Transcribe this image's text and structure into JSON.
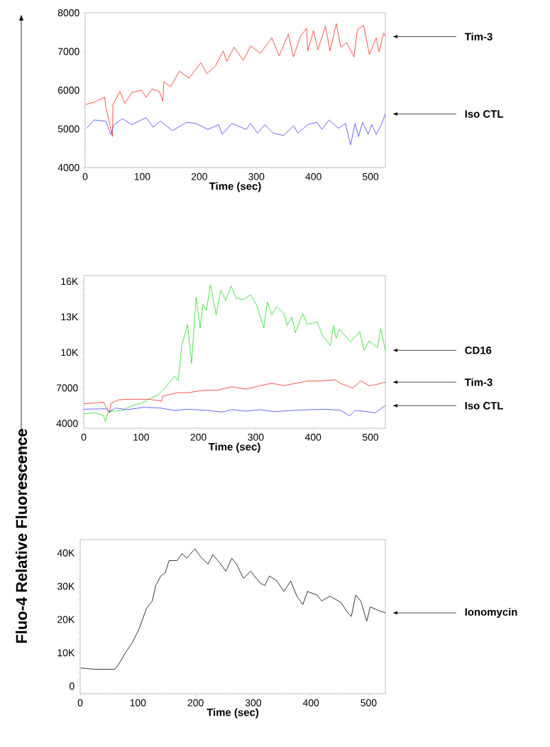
{
  "chart_data": [
    {
      "type": "line",
      "xlabel": "Time (sec)",
      "xlim": [
        0,
        526
      ],
      "xticks": [
        0,
        100,
        200,
        300,
        400,
        500
      ],
      "ylim": [
        4000,
        8000
      ],
      "yticks": [
        4000,
        5000,
        6000,
        7000,
        8000
      ],
      "series": [
        {
          "name": "Tim-3",
          "color": "#ff2a1a",
          "x": [
            0.8,
            15.4,
            34.1,
            36.2,
            47.8,
            48.7,
            61,
            69.5,
            82,
            98.6,
            107,
            117,
            130,
            136,
            138,
            150,
            165,
            182,
            203,
            213,
            228,
            242,
            248,
            261,
            277,
            290,
            307,
            327,
            340,
            356,
            365,
            377,
            388,
            390,
            400,
            408,
            421,
            429,
            440,
            448,
            458,
            471,
            477,
            488,
            498,
            510,
            515,
            523,
            526
          ],
          "values": [
            5630,
            5690,
            5815,
            5570,
            4800,
            5630,
            5970,
            5660,
            5940,
            6000,
            5815,
            6030,
            5970,
            5720,
            6215,
            6090,
            6490,
            6310,
            6710,
            6430,
            6615,
            7015,
            6740,
            7110,
            6770,
            7140,
            6955,
            7350,
            6890,
            7445,
            6860,
            7385,
            7600,
            7015,
            7540,
            7045,
            7660,
            7015,
            7720,
            7110,
            7230,
            6860,
            7570,
            7675,
            6920,
            7350,
            6985,
            7475,
            7385
          ]
        },
        {
          "name": "Iso CTL",
          "color": "#4040ff",
          "x": [
            2.9,
            15.4,
            36.2,
            44.5,
            50.7,
            65.3,
            82,
            107,
            119,
            132,
            153,
            178,
            194,
            215,
            234,
            240,
            257,
            282,
            290,
            302,
            315,
            329,
            348,
            365,
            373,
            390,
            406,
            415,
            427,
            444,
            456,
            465,
            473,
            479,
            486,
            496,
            502,
            510,
            519,
            526
          ],
          "values": [
            5015,
            5230,
            5200,
            4860,
            5110,
            5260,
            5110,
            5290,
            5045,
            5200,
            4955,
            5170,
            5140,
            4985,
            5110,
            4860,
            5140,
            4985,
            5140,
            4890,
            5110,
            4890,
            4830,
            5080,
            4890,
            5110,
            5170,
            4985,
            5230,
            5015,
            5140,
            4585,
            5140,
            4800,
            5170,
            4860,
            5110,
            4860,
            5110,
            5385
          ]
        }
      ]
    },
    {
      "type": "line",
      "xlabel": "Time (sec)",
      "xlim": [
        0,
        526
      ],
      "xticks": [
        0,
        100,
        200,
        300,
        400,
        500
      ],
      "ylim": [
        3600,
        16500
      ],
      "yticks": [
        4000,
        7000,
        {
          "value": 10000,
          "label": "10K"
        },
        {
          "value": 13000,
          "label": "13K"
        },
        {
          "value": 16000,
          "label": "16K"
        }
      ],
      "series": [
        {
          "name": "CD16",
          "color": "#22dd22",
          "x": [
            0,
            17.8,
            34.4,
            37.7,
            42.6,
            67.5,
            84,
            100.6,
            119,
            129.6,
            142,
            158.5,
            164.7,
            171,
            181,
            188,
            196,
            203,
            208,
            214,
            221,
            231,
            239,
            247.5,
            257,
            266,
            279,
            291,
            301,
            314,
            320,
            328,
            336.5,
            349,
            355,
            363,
            369,
            382,
            390,
            407,
            417,
            430,
            436,
            440,
            446,
            465,
            481,
            489,
            498,
            512,
            518,
            526
          ],
          "values": [
            4800,
            4900,
            4700,
            4160,
            5000,
            5100,
            5500,
            5700,
            6200,
            6400,
            7000,
            8000,
            7600,
            10580,
            12370,
            9080,
            14660,
            12070,
            14070,
            13570,
            15720,
            13170,
            15260,
            14370,
            15620,
            14560,
            14470,
            14860,
            14070,
            12070,
            14270,
            13170,
            13870,
            13270,
            12270,
            12970,
            11670,
            13270,
            12370,
            12570,
            11380,
            10580,
            12270,
            11180,
            11970,
            10880,
            11770,
            10180,
            10980,
            10380,
            12010,
            10180
          ]
        },
        {
          "name": "Tim-3",
          "color": "#ff2a1a",
          "x": [
            0,
            34.4,
            44.7,
            47.6,
            61,
            84,
            113,
            135.8,
            137.8,
            162.7,
            183,
            208,
            233,
            258,
            283,
            307.5,
            328,
            349,
            369.6,
            390,
            411,
            438,
            448,
            469,
            483,
            498,
            510,
            526
          ],
          "values": [
            5660,
            5800,
            4900,
            5700,
            6000,
            6040,
            6040,
            5900,
            6300,
            6600,
            6600,
            6800,
            6800,
            7100,
            6900,
            7190,
            7390,
            7190,
            7390,
            7590,
            7590,
            7690,
            7390,
            6990,
            7590,
            7190,
            7290,
            7490
          ]
        },
        {
          "name": "Iso CTL",
          "color": "#4040ff",
          "x": [
            0,
            38.5,
            44.7,
            55,
            75.7,
            104.7,
            133.7,
            158.5,
            183,
            216.5,
            241,
            258,
            282.7,
            307.5,
            332,
            365.5,
            390,
            423,
            448,
            464,
            473,
            494,
            508,
            526
          ],
          "values": [
            5200,
            5240,
            5000,
            5300,
            5160,
            5360,
            5300,
            5100,
            5200,
            5100,
            4960,
            5160,
            5040,
            5160,
            5000,
            5100,
            5160,
            5200,
            5100,
            4640,
            5100,
            5000,
            4900,
            5500
          ]
        }
      ]
    },
    {
      "type": "line",
      "xlabel": "Time (sec)",
      "ylabel": "Fluo-4 Relative Fluorescence",
      "xlim": [
        0,
        529
      ],
      "xticks": [
        0,
        100,
        200,
        300,
        400,
        500
      ],
      "ylim": [
        -2300,
        44000
      ],
      "yticks": [
        0,
        {
          "value": 10000,
          "label": "10K"
        },
        {
          "value": 20000,
          "label": "20K"
        },
        {
          "value": 30000,
          "label": "30K"
        },
        {
          "value": 40000,
          "label": "40K"
        }
      ],
      "series": [
        {
          "name": "Ionomycin",
          "color": "#000000",
          "x": [
            0.8,
            24.6,
            59.5,
            65.7,
            78,
            90.3,
            102.6,
            115,
            125,
            131,
            139.6,
            147.8,
            154,
            168,
            176.5,
            184.7,
            199,
            209,
            221.7,
            230,
            242,
            252.5,
            262.7,
            271,
            283,
            295.6,
            312,
            320,
            328,
            340.7,
            353,
            365,
            375.6,
            386,
            394,
            410.5,
            418.7,
            433,
            451.6,
            464,
            470,
            477.5,
            486.5,
            496.7,
            502.9,
            517,
            529
          ],
          "values": [
            5430,
            5070,
            5000,
            6290,
            9860,
            13070,
            17360,
            23430,
            25570,
            30210,
            33070,
            34140,
            37710,
            37710,
            39860,
            38430,
            41290,
            38790,
            36640,
            39500,
            37000,
            34500,
            38430,
            36640,
            32360,
            34500,
            30930,
            30210,
            33070,
            31640,
            28430,
            31570,
            27000,
            24500,
            28430,
            27360,
            25570,
            27000,
            25210,
            22000,
            20930,
            27360,
            25570,
            19500,
            23790,
            22710,
            22000
          ]
        }
      ]
    }
  ]
}
